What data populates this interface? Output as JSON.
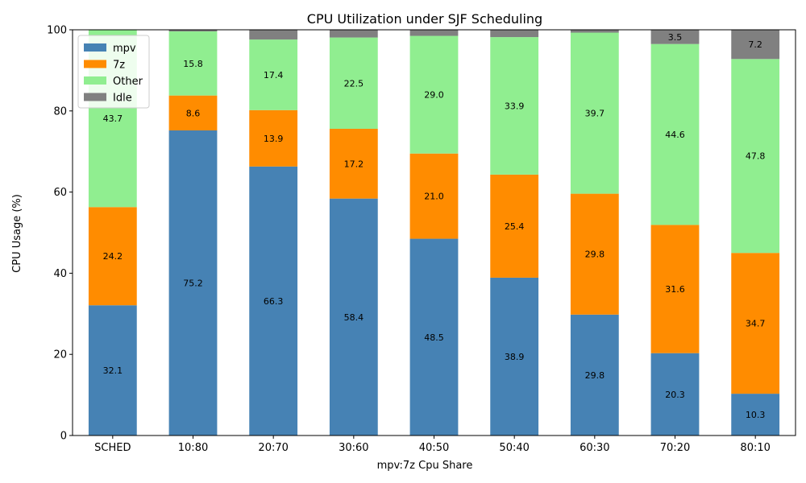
{
  "chart_data": {
    "type": "bar",
    "stacked": true,
    "title": "CPU Utilization under SJF Scheduling",
    "xlabel": "mpv:7z Cpu Share",
    "ylabel": "CPU Usage (%)",
    "ylim": [
      0,
      100
    ],
    "yticks": [
      0,
      20,
      40,
      60,
      80,
      100
    ],
    "grid": false,
    "legend_position": "top-left",
    "categories": [
      "SCHED",
      "10:80",
      "20:70",
      "30:60",
      "40:50",
      "50:40",
      "60:30",
      "70:20",
      "80:10"
    ],
    "series": [
      {
        "name": "mpv",
        "color": "#4682b4",
        "values": [
          32.1,
          75.2,
          66.3,
          58.4,
          48.5,
          38.9,
          29.8,
          20.3,
          10.3
        ]
      },
      {
        "name": "7z",
        "color": "#ff8c00",
        "values": [
          24.2,
          8.6,
          13.9,
          17.2,
          21.0,
          25.4,
          29.8,
          31.6,
          34.7
        ]
      },
      {
        "name": "Other",
        "color": "#90ee90",
        "values": [
          43.7,
          15.8,
          17.4,
          22.5,
          29.0,
          33.9,
          39.7,
          44.6,
          47.8
        ]
      },
      {
        "name": "Idle",
        "color": "#808080",
        "values": [
          0.0,
          0.4,
          2.4,
          1.9,
          1.5,
          1.8,
          0.7,
          3.5,
          7.2
        ]
      }
    ],
    "data_labels_min": 3
  }
}
